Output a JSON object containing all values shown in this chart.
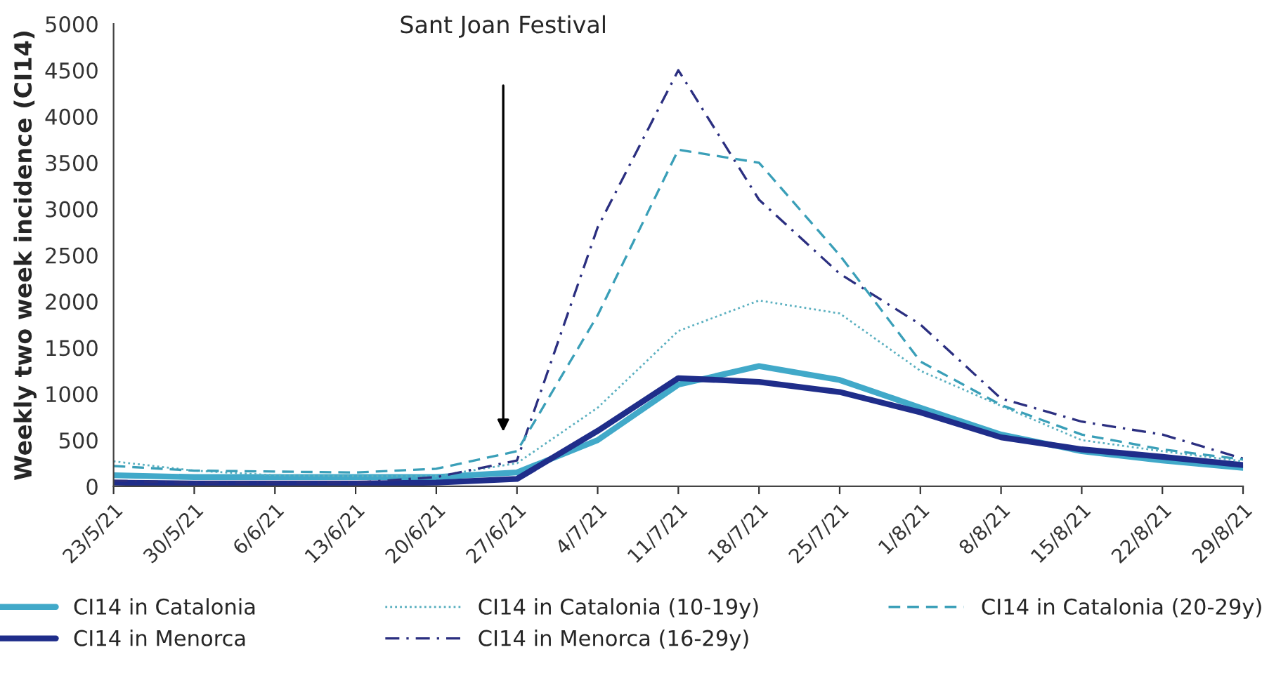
{
  "chart_data": {
    "type": "line",
    "ylabel": "Weekly two week incidence (CI14)",
    "categories": [
      "23/5/21",
      "30/5/21",
      "6/6/21",
      "13/6/21",
      "20/6/21",
      "27/6/21",
      "4/7/21",
      "11/7/21",
      "18/7/21",
      "25/7/21",
      "1/8/21",
      "8/8/21",
      "15/8/21",
      "22/8/21",
      "29/8/21"
    ],
    "series": [
      {
        "name": "CI14 in Catalonia",
        "color": "#41a9c9",
        "line_style": "solid",
        "values": [
          120,
          100,
          100,
          100,
          100,
          150,
          500,
          1100,
          1300,
          1150,
          850,
          560,
          380,
          280,
          200
        ]
      },
      {
        "name": "CI14 in Menorca",
        "color": "#1f2d8a",
        "line_style": "solid",
        "values": [
          40,
          30,
          30,
          30,
          40,
          80,
          600,
          1170,
          1130,
          1020,
          800,
          530,
          400,
          320,
          230
        ]
      },
      {
        "name": "CI14 in Catalonia (10-19y)",
        "color": "#5bb0c0",
        "line_style": "dotted",
        "values": [
          270,
          170,
          120,
          110,
          110,
          250,
          850,
          1680,
          2010,
          1870,
          1250,
          870,
          500,
          380,
          270
        ]
      },
      {
        "name": "CI14 in Menorca (16-29y)",
        "color": "#2b2f80",
        "line_style": "dashdot",
        "values": [
          60,
          40,
          40,
          40,
          100,
          280,
          2800,
          4500,
          3100,
          2300,
          1750,
          950,
          700,
          560,
          300
        ]
      },
      {
        "name": "CI14 in Catalonia (20-29y)",
        "color": "#3a9fb8",
        "line_style": "dashed",
        "values": [
          220,
          170,
          160,
          150,
          190,
          380,
          1850,
          3640,
          3500,
          2500,
          1350,
          880,
          560,
          400,
          290
        ]
      }
    ],
    "ylim": [
      0,
      5000
    ],
    "yticks": [
      0,
      500,
      1000,
      1500,
      2000,
      2500,
      3000,
      3500,
      4000,
      4500,
      5000
    ],
    "annotations": [
      "Sant Joan Festival"
    ],
    "grid": false,
    "legend": "bottom",
    "marker": "none"
  }
}
